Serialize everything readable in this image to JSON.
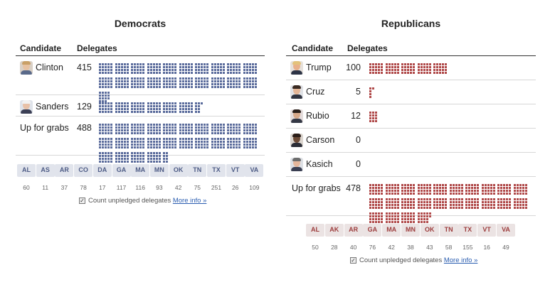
{
  "colors": {
    "democrat_dot": "#5b6c9c",
    "republican_dot": "#b04a4a"
  },
  "democrats": {
    "title": "Democrats",
    "header": {
      "candidate": "Candidate",
      "delegates": "Delegates"
    },
    "rows": [
      {
        "name": "Clinton",
        "delegates": 415,
        "delegates_label": "415",
        "photo": "clinton-photo"
      },
      {
        "name": "Sanders",
        "delegates": 129,
        "delegates_label": "129",
        "photo": "sanders-photo"
      },
      {
        "name": "Up for grabs",
        "delegates": 488,
        "delegates_label": "488",
        "photo": ""
      }
    ],
    "states": [
      {
        "abbr": "AL",
        "count": "60"
      },
      {
        "abbr": "AS",
        "count": "11"
      },
      {
        "abbr": "AR",
        "count": "37"
      },
      {
        "abbr": "CO",
        "count": "78"
      },
      {
        "abbr": "DA",
        "count": "17"
      },
      {
        "abbr": "GA",
        "count": "117"
      },
      {
        "abbr": "MA",
        "count": "116"
      },
      {
        "abbr": "MN",
        "count": "93"
      },
      {
        "abbr": "OK",
        "count": "42"
      },
      {
        "abbr": "TN",
        "count": "75"
      },
      {
        "abbr": "TX",
        "count": "251"
      },
      {
        "abbr": "VT",
        "count": "26"
      },
      {
        "abbr": "VA",
        "count": "109"
      }
    ],
    "footer": {
      "checkbox_label": "Count unpledged delegates",
      "link": "More info »"
    }
  },
  "republicans": {
    "title": "Republicans",
    "header": {
      "candidate": "Candidate",
      "delegates": "Delegates"
    },
    "rows": [
      {
        "name": "Trump",
        "delegates": 100,
        "delegates_label": "100",
        "photo": "trump-photo"
      },
      {
        "name": "Cruz",
        "delegates": 5,
        "delegates_label": "5",
        "photo": "cruz-photo"
      },
      {
        "name": "Rubio",
        "delegates": 12,
        "delegates_label": "12",
        "photo": "rubio-photo"
      },
      {
        "name": "Carson",
        "delegates": 0,
        "delegates_label": "0",
        "photo": "carson-photo"
      },
      {
        "name": "Kasich",
        "delegates": 0,
        "delegates_label": "0",
        "photo": "kasich-photo"
      },
      {
        "name": "Up for grabs",
        "delegates": 478,
        "delegates_label": "478",
        "photo": ""
      }
    ],
    "states": [
      {
        "abbr": "AL",
        "count": "50"
      },
      {
        "abbr": "AK",
        "count": "28"
      },
      {
        "abbr": "AR",
        "count": "40"
      },
      {
        "abbr": "GA",
        "count": "76"
      },
      {
        "abbr": "MA",
        "count": "42"
      },
      {
        "abbr": "MN",
        "count": "38"
      },
      {
        "abbr": "OK",
        "count": "43"
      },
      {
        "abbr": "TN",
        "count": "58"
      },
      {
        "abbr": "TX",
        "count": "155"
      },
      {
        "abbr": "VT",
        "count": "16"
      },
      {
        "abbr": "VA",
        "count": "49"
      }
    ],
    "footer": {
      "checkbox_label": "Count unpledged delegates",
      "link": "More info »"
    }
  }
}
